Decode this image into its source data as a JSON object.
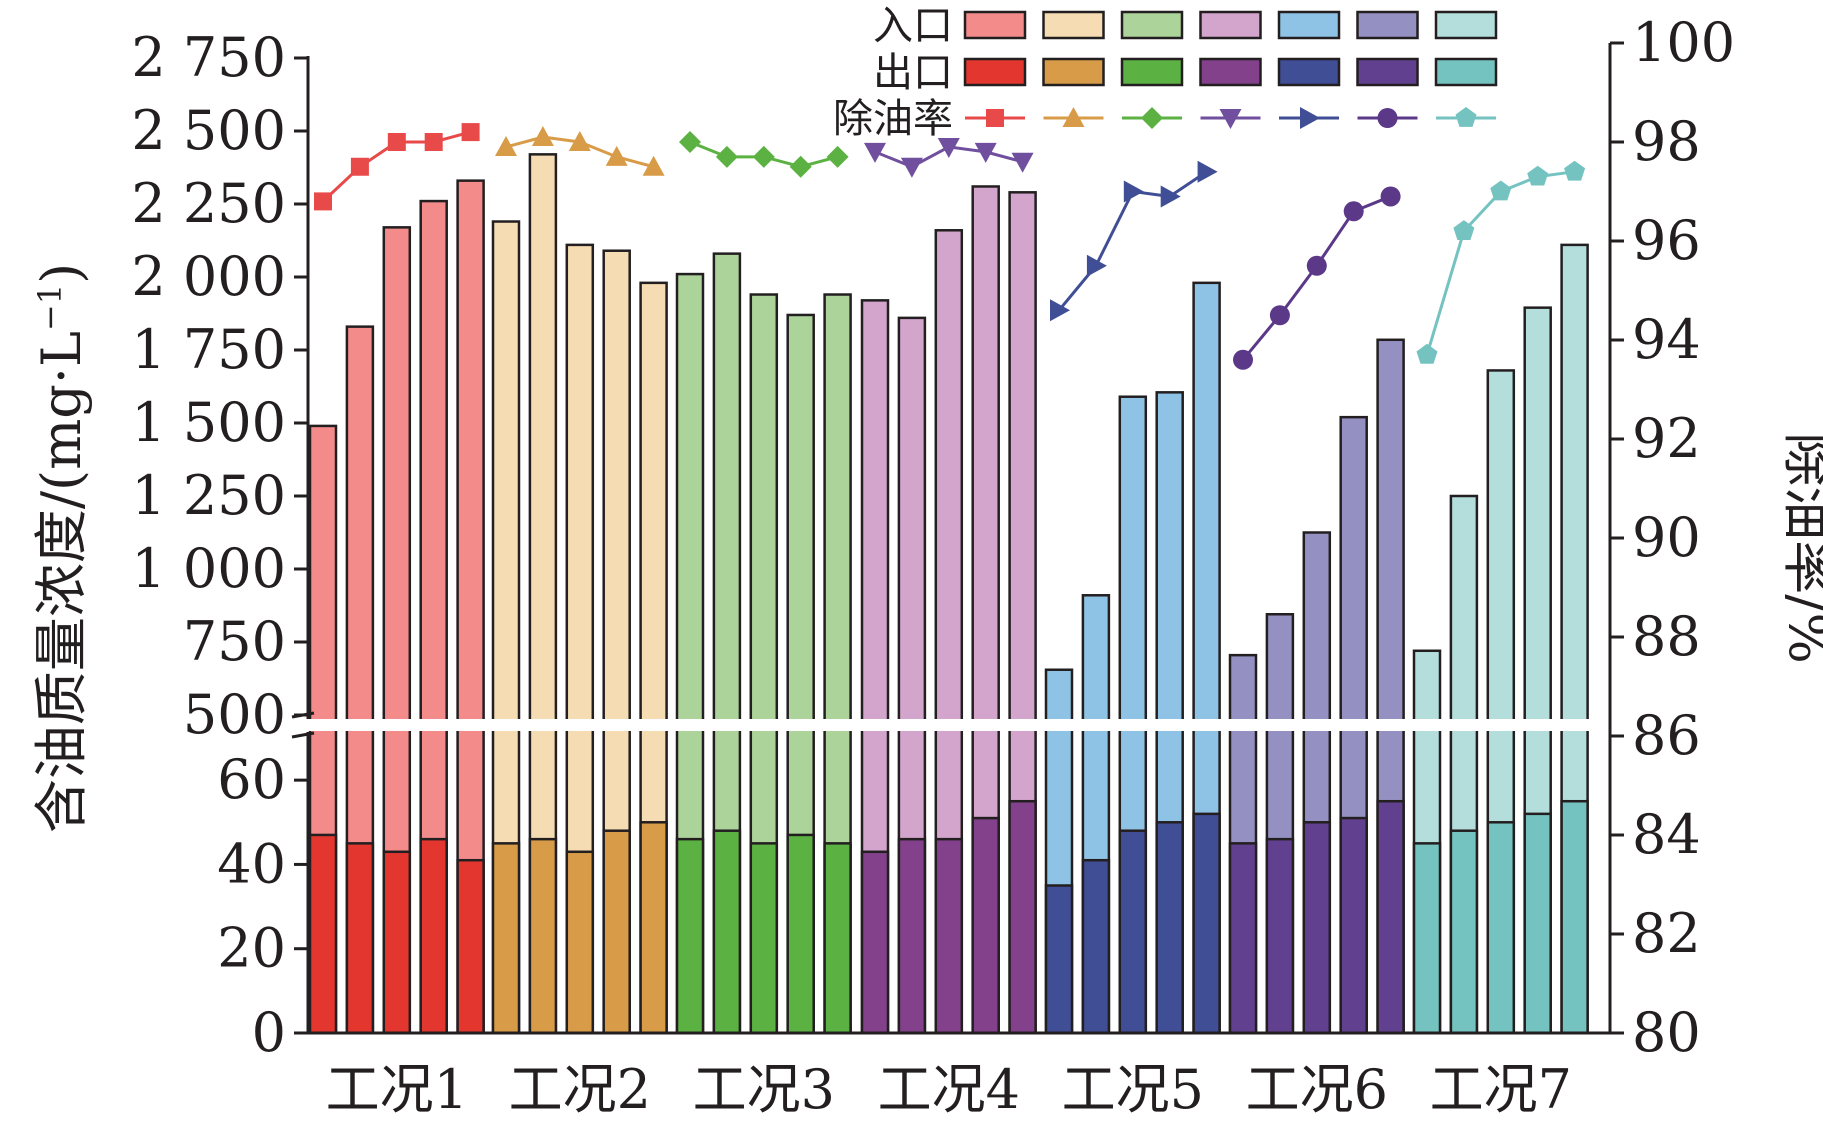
{
  "chart_data": {
    "type": "bar",
    "ylabel_left_text": "含油质量浓度/(mg·L",
    "ylabel_left_sup": "−1",
    "ylabel_left_close": ")",
    "ylabel_right": "除油率/%",
    "y_upper_range": [
      500,
      2750
    ],
    "y_upper_ticks": [
      500,
      750,
      1000,
      1250,
      1500,
      1750,
      2000,
      2250,
      2500,
      2750
    ],
    "y_upper_tick_labels": [
      "500",
      "750",
      "1 000",
      "1 250",
      "1 500",
      "1 750",
      "2 000",
      "2 250",
      "2 500",
      "2 750"
    ],
    "y_lower_range": [
      0,
      70
    ],
    "y_lower_ticks": [
      0,
      20,
      40,
      60
    ],
    "y_lower_tick_labels": [
      "0",
      "20",
      "40",
      "60"
    ],
    "y_right_range": [
      80,
      100
    ],
    "y_right_ticks": [
      80,
      82,
      84,
      86,
      88,
      90,
      92,
      94,
      96,
      98,
      100
    ],
    "y_right_tick_labels": [
      "80",
      "82",
      "84",
      "86",
      "88",
      "90",
      "92",
      "94",
      "96",
      "98",
      "100"
    ],
    "legend": {
      "row_labels": [
        "入口",
        "出口",
        "除油率"
      ],
      "placement": "top-right"
    },
    "groups": [
      {
        "label": "工况1",
        "inlet_color": "#f38b8b",
        "outlet_color": "#e3362e",
        "line_color": "#e84a4a",
        "marker": "square",
        "inlet": [
          1490,
          1830,
          2170,
          2260,
          2330
        ],
        "outlet": [
          47,
          45,
          43,
          46,
          41
        ],
        "removal": [
          96.8,
          97.5,
          98.0,
          98.0,
          98.2
        ]
      },
      {
        "label": "工况2",
        "inlet_color": "#f5dcb2",
        "outlet_color": "#d89c48",
        "line_color": "#d89c48",
        "marker": "triangle-up",
        "inlet": [
          2190,
          2420,
          2110,
          2090,
          1980
        ],
        "outlet": [
          45,
          46,
          43,
          48,
          50
        ],
        "removal": [
          97.9,
          98.1,
          98.0,
          97.7,
          97.5
        ]
      },
      {
        "label": "工况3",
        "inlet_color": "#acd39a",
        "outlet_color": "#5bb243",
        "line_color": "#5bb243",
        "marker": "diamond",
        "inlet": [
          2010,
          2080,
          1940,
          1870,
          1940
        ],
        "outlet": [
          46,
          48,
          45,
          47,
          45
        ],
        "removal": [
          98.0,
          97.7,
          97.7,
          97.5,
          97.7
        ]
      },
      {
        "label": "工况4",
        "inlet_color": "#d3a5cc",
        "outlet_color": "#82418a",
        "line_color": "#6f4f9e",
        "marker": "triangle-down",
        "inlet": [
          1920,
          1860,
          2160,
          2310,
          2290
        ],
        "outlet": [
          43,
          46,
          46,
          51,
          55
        ],
        "removal": [
          97.8,
          97.5,
          97.9,
          97.8,
          97.6
        ]
      },
      {
        "label": "工况5",
        "inlet_color": "#8fc3e6",
        "outlet_color": "#3f4e95",
        "line_color": "#3f4e95",
        "marker": "triangle-right",
        "inlet": [
          655,
          910,
          1590,
          1605,
          1980
        ],
        "outlet": [
          35,
          41,
          48,
          50,
          52
        ],
        "removal": [
          94.6,
          95.5,
          97.0,
          96.9,
          97.4
        ]
      },
      {
        "label": "工况6",
        "inlet_color": "#9490c2",
        "outlet_color": "#624090",
        "line_color": "#5b3888",
        "marker": "circle",
        "inlet": [
          705,
          845,
          1125,
          1520,
          1785
        ],
        "outlet": [
          45,
          46,
          50,
          51,
          55
        ],
        "removal": [
          93.6,
          94.5,
          95.5,
          96.6,
          96.9
        ]
      },
      {
        "label": "工况7",
        "inlet_color": "#b4dedc",
        "outlet_color": "#74c3c1",
        "line_color": "#74c3c1",
        "marker": "pentagon",
        "inlet": [
          720,
          1250,
          1680,
          1895,
          2110
        ],
        "outlet": [
          45,
          48,
          50,
          52,
          55
        ],
        "removal": [
          93.7,
          96.2,
          97.0,
          97.3,
          97.4
        ]
      }
    ]
  }
}
